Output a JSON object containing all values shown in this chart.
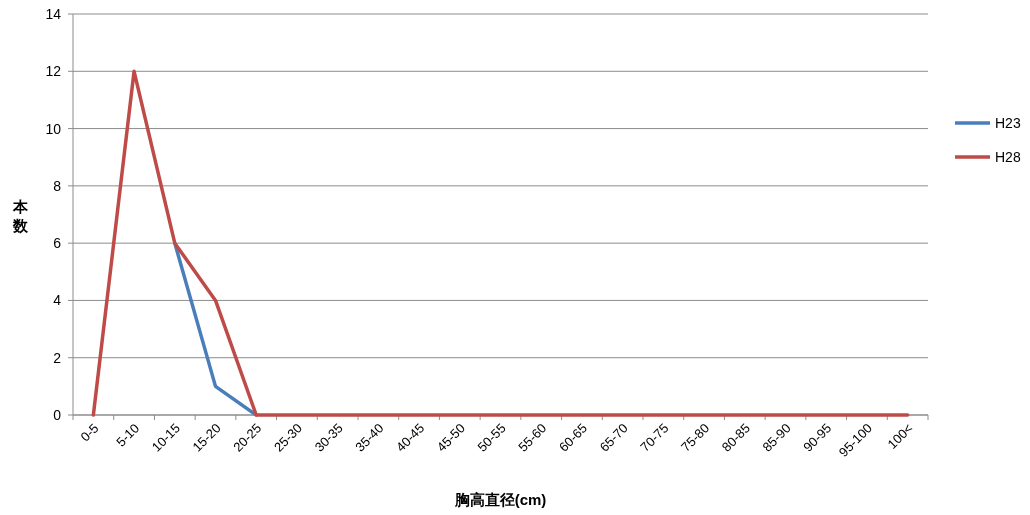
{
  "chart_data": {
    "type": "line",
    "xlabel": "胸高直径(cm)",
    "ylabel": "本数",
    "categories": [
      "0-5",
      "5-10",
      "10-15",
      "15-20",
      "20-25",
      "25-30",
      "30-35",
      "35-40",
      "40-45",
      "45-50",
      "50-55",
      "55-60",
      "60-65",
      "65-70",
      "70-75",
      "75-80",
      "80-85",
      "85-90",
      "90-95",
      "95-100",
      "100<"
    ],
    "series": [
      {
        "name": "H23",
        "color": "#4a7ebb",
        "values": [
          null,
          null,
          6,
          1,
          0,
          null,
          null,
          null,
          null,
          null,
          null,
          null,
          null,
          null,
          null,
          null,
          null,
          null,
          null,
          null,
          null
        ]
      },
      {
        "name": "H28",
        "color": "#be4b48",
        "values": [
          0,
          12,
          6,
          4,
          0,
          0,
          0,
          0,
          0,
          0,
          0,
          0,
          0,
          0,
          0,
          0,
          0,
          0,
          0,
          0,
          0
        ]
      }
    ],
    "ylim": [
      0,
      14
    ],
    "yticks": [
      0,
      2,
      4,
      6,
      8,
      10,
      12,
      14
    ],
    "grid": "y",
    "legend": "right"
  }
}
